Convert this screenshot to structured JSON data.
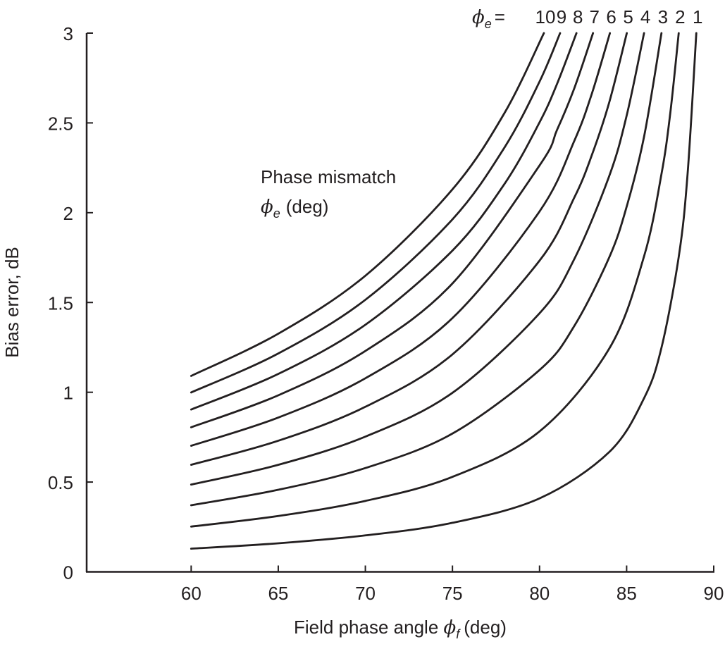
{
  "chart_data": {
    "type": "line",
    "xlabel": "Field phase angle",
    "xlabel_symbol": "ϕ",
    "xlabel_subscript": "f",
    "xlabel_unit": "(deg)",
    "ylabel": "Bias error, dB",
    "xlim": [
      54,
      90
    ],
    "ylim": [
      0,
      3
    ],
    "xticks": [
      60,
      65,
      70,
      75,
      80,
      85,
      90
    ],
    "yticks": [
      0,
      0.5,
      1,
      1.5,
      2,
      2.5,
      3
    ],
    "ytick_labels": [
      "0",
      "0.5",
      "1",
      "1.5",
      "2",
      "2.5",
      "3"
    ],
    "grid": false,
    "line_color": "#231f20",
    "annotation": {
      "line1": "Phase mismatch",
      "symbol": "ϕ",
      "subscript": "e",
      "unit": "(deg)"
    },
    "series_header": {
      "symbol": "ϕ",
      "subscript": "e",
      "equals": "="
    },
    "series": [
      {
        "name": "10",
        "x": [
          60,
          65,
          70,
          75,
          78,
          80.25
        ],
        "y": [
          1.091,
          1.326,
          1.649,
          2.13,
          2.557,
          3.0
        ]
      },
      {
        "name": "9",
        "x": [
          60,
          65,
          70,
          75,
          78,
          80,
          81.18
        ],
        "y": [
          0.999,
          1.216,
          1.515,
          1.963,
          2.365,
          2.73,
          3.0
        ]
      },
      {
        "name": "8",
        "x": [
          60,
          65,
          70,
          75,
          78,
          80,
          81,
          82.12
        ],
        "y": [
          0.904,
          1.102,
          1.376,
          1.789,
          2.162,
          2.503,
          2.716,
          3.0
        ]
      },
      {
        "name": "7",
        "x": [
          60,
          65,
          70,
          75,
          80,
          81,
          82,
          83.07
        ],
        "y": [
          0.805,
          0.983,
          1.23,
          1.606,
          2.263,
          2.46,
          2.694,
          3.0
        ]
      },
      {
        "name": "6",
        "x": [
          60,
          65,
          70,
          75,
          80,
          82,
          83,
          84.04
        ],
        "y": [
          0.702,
          0.859,
          1.078,
          1.413,
          2.007,
          2.401,
          2.662,
          3.0
        ]
      },
      {
        "name": "5",
        "x": [
          60,
          65,
          70,
          75,
          80,
          82,
          83,
          84,
          85.01
        ],
        "y": [
          0.596,
          0.73,
          0.919,
          1.211,
          1.733,
          2.085,
          2.32,
          2.614,
          3.0
        ]
      },
      {
        "name": "4",
        "x": [
          60,
          65,
          70,
          75,
          80,
          82,
          84,
          85,
          86.0
        ],
        "y": [
          0.486,
          0.596,
          0.753,
          0.997,
          1.44,
          1.743,
          2.204,
          2.54,
          3.0
        ]
      },
      {
        "name": "3",
        "x": [
          60,
          65,
          70,
          75,
          80,
          82,
          84,
          85,
          86,
          87.0
        ],
        "y": [
          0.371,
          0.457,
          0.578,
          0.77,
          1.124,
          1.37,
          1.751,
          2.033,
          2.423,
          3.0
        ]
      },
      {
        "name": "2",
        "x": [
          60,
          65,
          70,
          75,
          80,
          84,
          86,
          87,
          87.5,
          87.99
        ],
        "y": [
          0.252,
          0.311,
          0.395,
          0.529,
          0.782,
          1.243,
          1.757,
          2.215,
          2.55,
          3.0
        ]
      },
      {
        "name": "1",
        "x": [
          60,
          65,
          70,
          75,
          80,
          84,
          86,
          87,
          88,
          88.5,
          89.0
        ],
        "y": [
          0.129,
          0.159,
          0.203,
          0.273,
          0.409,
          0.667,
          0.967,
          1.248,
          1.76,
          2.217,
          3.0
        ]
      }
    ]
  }
}
